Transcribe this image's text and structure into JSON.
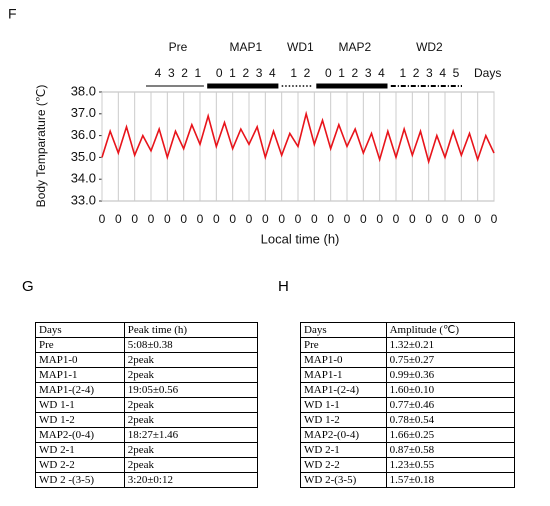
{
  "chart_data": {
    "type": "line",
    "panel_label": "F",
    "ylabel": "Body Temparature (℃)",
    "xlabel": "Local time (h)",
    "days_label": "Days",
    "phases": [
      {
        "name": "Pre",
        "days": [
          "4",
          "3",
          "2",
          "1"
        ],
        "style": "line"
      },
      {
        "name": "MAP1",
        "days": [
          "0",
          "1",
          "2",
          "3",
          "4"
        ],
        "style": "solid"
      },
      {
        "name": "WD1",
        "days": [
          "1",
          "2"
        ],
        "style": "dotted"
      },
      {
        "name": "MAP2",
        "days": [
          "0",
          "1",
          "2",
          "3",
          "4"
        ],
        "style": "solid"
      },
      {
        "name": "WD2",
        "days": [
          "1",
          "2",
          "3",
          "4",
          "5"
        ],
        "style": "dashdot"
      }
    ],
    "ylim": [
      33,
      38
    ],
    "yticks": [
      {
        "value": 33,
        "label": "33.0"
      },
      {
        "value": 34,
        "label": "34.0"
      },
      {
        "value": 35,
        "label": "35.0"
      },
      {
        "value": 36,
        "label": "36.0"
      },
      {
        "value": 37,
        "label": "37.0"
      },
      {
        "value": 38,
        "label": "38.0"
      }
    ],
    "xlim": [
      0,
      24
    ],
    "xticks": [
      {
        "value": 0,
        "label": "0"
      },
      {
        "value": 1,
        "label": "0"
      },
      {
        "value": 2,
        "label": "0"
      },
      {
        "value": 3,
        "label": "0"
      },
      {
        "value": 4,
        "label": "0"
      },
      {
        "value": 5,
        "label": "0"
      },
      {
        "value": 6,
        "label": "0"
      },
      {
        "value": 7,
        "label": "0"
      },
      {
        "value": 8,
        "label": "0"
      },
      {
        "value": 9,
        "label": "0"
      },
      {
        "value": 10,
        "label": "0"
      },
      {
        "value": 11,
        "label": "0"
      },
      {
        "value": 12,
        "label": "0"
      },
      {
        "value": 13,
        "label": "0"
      },
      {
        "value": 14,
        "label": "0"
      },
      {
        "value": 15,
        "label": "0"
      },
      {
        "value": 16,
        "label": "0"
      },
      {
        "value": 17,
        "label": "0"
      },
      {
        "value": 18,
        "label": "0"
      },
      {
        "value": 19,
        "label": "0"
      },
      {
        "value": 20,
        "label": "0"
      },
      {
        "value": 21,
        "label": "0"
      },
      {
        "value": 22,
        "label": "0"
      },
      {
        "value": 23,
        "label": "0"
      },
      {
        "value": 24,
        "label": "0"
      }
    ],
    "grid": true,
    "x": [
      0,
      0.5,
      1,
      1.5,
      2,
      2.5,
      3,
      3.5,
      4,
      4.5,
      5,
      5.5,
      6,
      6.5,
      7,
      7.5,
      8,
      8.5,
      9,
      9.5,
      10,
      10.5,
      11,
      11.5,
      12,
      12.5,
      13,
      13.5,
      14,
      14.5,
      15,
      15.5,
      16,
      16.5,
      17,
      17.5,
      18,
      18.5,
      19,
      19.5,
      20,
      20.5,
      21,
      21.5,
      22,
      22.5,
      23,
      23.5,
      24
    ],
    "series": [
      {
        "color": "#e8141b",
        "values": [
          35.0,
          36.2,
          35.2,
          36.4,
          35.1,
          36.0,
          35.3,
          36.3,
          35.0,
          36.2,
          35.4,
          36.5,
          35.6,
          36.9,
          35.5,
          36.6,
          35.4,
          36.3,
          35.6,
          36.4,
          35.0,
          36.2,
          35.1,
          36.1,
          35.5,
          37.0,
          35.6,
          36.7,
          35.4,
          36.5,
          35.5,
          36.3,
          35.2,
          36.1,
          34.9,
          36.2,
          35.0,
          36.3,
          35.1,
          36.2,
          34.8,
          36.0,
          35.0,
          36.2,
          35.1,
          36.1,
          34.9,
          36.0,
          35.2
        ]
      }
    ]
  },
  "table_g": {
    "label": "G",
    "header": [
      "Days",
      "Peak time (h)"
    ],
    "rows": [
      [
        "Pre",
        "5:08±0.38"
      ],
      [
        "MAP1-0",
        "2peak"
      ],
      [
        "MAP1-1",
        "2peak"
      ],
      [
        "MAP1-(2-4)",
        "19:05±0.56"
      ],
      [
        "WD 1-1",
        "2peak"
      ],
      [
        "WD 1-2",
        "2peak"
      ],
      [
        "MAP2-(0-4)",
        "18:27±1.46"
      ],
      [
        "WD 2-1",
        "2peak"
      ],
      [
        "WD 2-2",
        "2peak"
      ],
      [
        "WD 2 -(3-5)",
        "3:20±0:12"
      ]
    ]
  },
  "table_h": {
    "label": "H",
    "header": [
      "Days",
      "Amplitude (℃)"
    ],
    "rows": [
      [
        "Pre",
        "1.32±0.21"
      ],
      [
        "MAP1-0",
        "0.75±0.27"
      ],
      [
        "MAP1-1",
        "0.99±0.36"
      ],
      [
        "MAP1-(2-4)",
        "1.60±0.10"
      ],
      [
        "WD 1-1",
        "0.77±0.46"
      ],
      [
        "WD 1-2",
        "0.78±0.54"
      ],
      [
        "MAP2-(0-4)",
        "1.66±0.25"
      ],
      [
        "WD 2-1",
        "0.87±0.58"
      ],
      [
        "WD 2-2",
        "1.23±0.55"
      ],
      [
        "WD 2-(3-5)",
        "1.57±0.18"
      ]
    ]
  }
}
